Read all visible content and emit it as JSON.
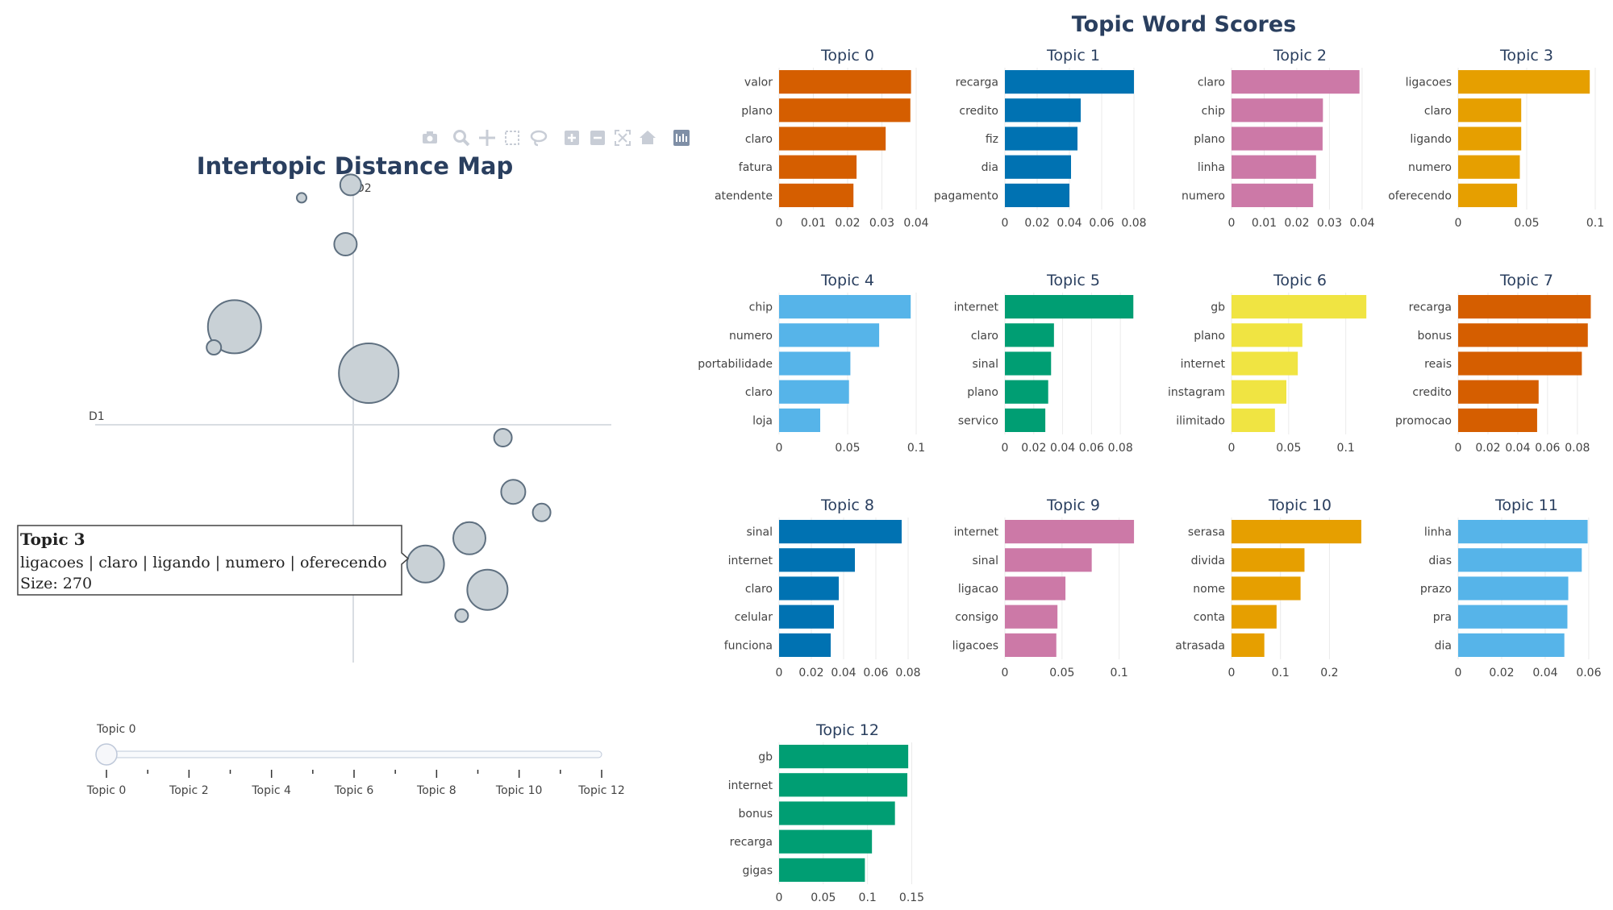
{
  "page": {
    "toolbar_icons": [
      "camera-icon",
      "zoom-icon",
      "pan-icon",
      "box-select-icon",
      "lasso-icon",
      "zoom-in-icon",
      "zoom-out-icon",
      "autoscale-icon",
      "home-icon",
      "plotly-logo-icon"
    ]
  },
  "chart_data": [
    {
      "type": "scatter",
      "title": "Intertopic Distance Map",
      "xlabel": "D1",
      "ylabel": "D2",
      "grid": false,
      "xlim": [
        -10,
        10
      ],
      "ylim": [
        -10,
        10
      ],
      "marker_color": "#c9d1d6",
      "marker_edge_color": "#5f7080",
      "points": [
        {
          "x": -2.0,
          "y": 8.8,
          "r": 6
        },
        {
          "x": -0.1,
          "y": 9.3,
          "r": 13
        },
        {
          "x": -0.3,
          "y": 7.0,
          "r": 14
        },
        {
          "x": -4.6,
          "y": 3.8,
          "r": 33
        },
        {
          "x": -5.4,
          "y": 3.0,
          "r": 9
        },
        {
          "x": 0.6,
          "y": 2.0,
          "r": 37
        },
        {
          "x": 5.8,
          "y": -0.5,
          "r": 11
        },
        {
          "x": 6.2,
          "y": -2.6,
          "r": 15
        },
        {
          "x": 7.3,
          "y": -3.4,
          "r": 11
        },
        {
          "x": 4.5,
          "y": -4.4,
          "r": 20
        },
        {
          "x": 2.8,
          "y": -5.4,
          "r": 23
        },
        {
          "x": 5.2,
          "y": -6.4,
          "r": 25
        },
        {
          "x": 4.2,
          "y": -7.4,
          "r": 8
        }
      ],
      "slider": {
        "current": "Topic 0",
        "ticks": [
          "Topic 0",
          "Topic 2",
          "Topic 4",
          "Topic 6",
          "Topic 8",
          "Topic 10",
          "Topic 12"
        ]
      },
      "tooltip": {
        "title": "Topic 3",
        "words": "ligacoes | claro | ligando | numero | oferecendo",
        "size": "Size: 270"
      }
    },
    {
      "type": "bar",
      "orientation": "horizontal",
      "title": "Topic Word Scores",
      "subplots": [
        {
          "title": "Topic 0",
          "color": "#d55e00",
          "categories": [
            "valor",
            "plano",
            "claro",
            "fatura",
            "atendente"
          ],
          "values": [
            0.0385,
            0.0383,
            0.0311,
            0.0226,
            0.0217
          ],
          "ticks": [
            0,
            0.01,
            0.02,
            0.03,
            0.04
          ],
          "xmax": 0.04
        },
        {
          "title": "Topic 1",
          "color": "#0072b2",
          "categories": [
            "recarga",
            "credito",
            "fiz",
            "dia",
            "pagamento"
          ],
          "values": [
            0.08,
            0.047,
            0.045,
            0.041,
            0.04
          ],
          "ticks": [
            0,
            0.02,
            0.04,
            0.06,
            0.08
          ],
          "xmax": 0.085
        },
        {
          "title": "Topic 2",
          "color": "#cc79a7",
          "categories": [
            "claro",
            "chip",
            "plano",
            "linha",
            "numero"
          ],
          "values": [
            0.0392,
            0.028,
            0.0279,
            0.0259,
            0.025
          ],
          "ticks": [
            0,
            0.01,
            0.02,
            0.03,
            0.04
          ],
          "xmax": 0.042
        },
        {
          "title": "Topic 3",
          "color": "#e69f00",
          "categories": [
            "ligacoes",
            "claro",
            "ligando",
            "numero",
            "oferecendo"
          ],
          "values": [
            0.096,
            0.046,
            0.046,
            0.045,
            0.043
          ],
          "ticks": [
            0,
            0.05,
            0.1
          ],
          "xmax": 0.1
        },
        {
          "title": "Topic 4",
          "color": "#56b4e9",
          "categories": [
            "chip",
            "numero",
            "portabilidade",
            "claro",
            "loja"
          ],
          "values": [
            0.096,
            0.073,
            0.052,
            0.051,
            0.03
          ],
          "ticks": [
            0,
            0.05,
            0.1
          ],
          "xmax": 0.1
        },
        {
          "title": "Topic 5",
          "color": "#009e73",
          "categories": [
            "internet",
            "claro",
            "sinal",
            "plano",
            "servico"
          ],
          "values": [
            0.089,
            0.034,
            0.032,
            0.03,
            0.028
          ],
          "ticks": [
            0,
            0.02,
            0.04,
            0.06,
            0.08
          ],
          "xmax": 0.095
        },
        {
          "title": "Topic 6",
          "color": "#f0e442",
          "categories": [
            "gb",
            "plano",
            "internet",
            "instagram",
            "ilimitado"
          ],
          "values": [
            0.118,
            0.062,
            0.058,
            0.048,
            0.038
          ],
          "ticks": [
            0,
            0.05,
            0.1
          ],
          "xmax": 0.12
        },
        {
          "title": "Topic 7",
          "color": "#d55e00",
          "categories": [
            "recarga",
            "bonus",
            "reais",
            "credito",
            "promocao"
          ],
          "values": [
            0.089,
            0.087,
            0.083,
            0.054,
            0.053
          ],
          "ticks": [
            0,
            0.02,
            0.04,
            0.06,
            0.08
          ],
          "xmax": 0.092
        },
        {
          "title": "Topic 8",
          "color": "#0072b2",
          "categories": [
            "sinal",
            "internet",
            "claro",
            "celular",
            "funciona"
          ],
          "values": [
            0.076,
            0.047,
            0.037,
            0.034,
            0.032
          ],
          "ticks": [
            0,
            0.02,
            0.04,
            0.06,
            0.08
          ],
          "xmax": 0.085
        },
        {
          "title": "Topic 9",
          "color": "#cc79a7",
          "categories": [
            "internet",
            "sinal",
            "ligacao",
            "consigo",
            "ligacoes"
          ],
          "values": [
            0.113,
            0.076,
            0.053,
            0.046,
            0.045
          ],
          "ticks": [
            0,
            0.05,
            0.1
          ],
          "xmax": 0.12
        },
        {
          "title": "Topic 10",
          "color": "#e69f00",
          "categories": [
            "serasa",
            "divida",
            "nome",
            "conta",
            "atrasada"
          ],
          "values": [
            0.265,
            0.149,
            0.141,
            0.092,
            0.067
          ],
          "ticks": [
            0,
            0.1,
            0.2
          ],
          "xmax": 0.28
        },
        {
          "title": "Topic 11",
          "color": "#56b4e9",
          "categories": [
            "linha",
            "dias",
            "prazo",
            "pra",
            "dia"
          ],
          "values": [
            0.0595,
            0.0568,
            0.0506,
            0.0502,
            0.0488
          ],
          "ticks": [
            0,
            0.02,
            0.04,
            0.06
          ],
          "xmax": 0.063
        },
        {
          "title": "Topic 12",
          "color": "#009e73",
          "categories": [
            "gb",
            "internet",
            "bonus",
            "recarga",
            "gigas"
          ],
          "values": [
            0.146,
            0.145,
            0.131,
            0.105,
            0.097
          ],
          "ticks": [
            0,
            0.05,
            0.1,
            0.15
          ],
          "xmax": 0.155
        }
      ]
    }
  ]
}
